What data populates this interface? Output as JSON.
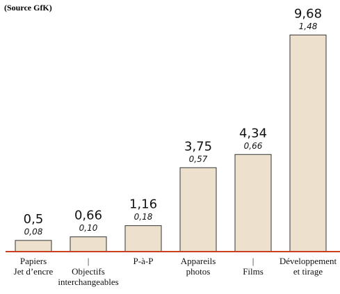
{
  "chart_data": {
    "type": "bar",
    "title": "(Source GfK)",
    "categories": [
      [
        "Papiers",
        "Jet d’encre"
      ],
      [
        "|",
        "Objectifs",
        "interchangeables"
      ],
      [
        "P-à-P"
      ],
      [
        "Appareils",
        "photos"
      ],
      [
        "|",
        "Films"
      ],
      [
        "Développement",
        "et tirage"
      ]
    ],
    "values": [
      0.5,
      0.66,
      1.16,
      3.75,
      4.34,
      9.68
    ],
    "value_labels": [
      "0,5",
      "0,66",
      "1,16",
      "3,75",
      "4,34",
      "9,68"
    ],
    "sub_values": [
      0.08,
      0.1,
      0.18,
      0.57,
      0.66,
      1.48
    ],
    "sub_value_labels": [
      "0,08",
      "0,10",
      "0,18",
      "0,57",
      "0,66",
      "1,48"
    ],
    "color": "#ede0cc",
    "ylim": [
      0,
      10
    ]
  }
}
